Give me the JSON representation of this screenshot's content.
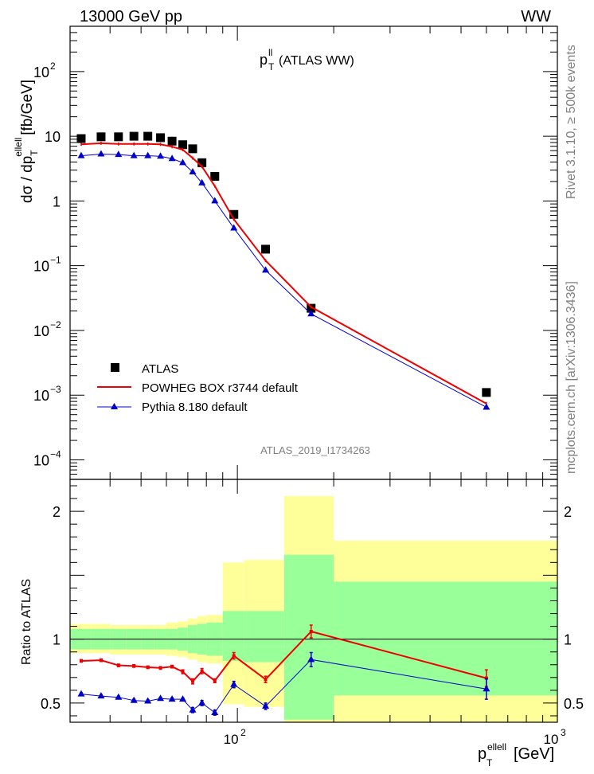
{
  "header": {
    "energy_label": "13000 GeV pp",
    "process_label": "WW",
    "title_main": "p",
    "title_sup": "ll",
    "title_sub": "T",
    "title_rest": " (ATLAS WW)",
    "analysis_id": "ATLAS_2019_I1734263",
    "rivet_label": "Rivet 3.1.10, ≥ 500k events",
    "mcplots_label": "mcplots.cern.ch [arXiv:1306.3436]"
  },
  "chart_data": [
    {
      "type": "scatter",
      "yscale": "log",
      "xscale": "log",
      "title": "pT^ll (ATLAS WW)",
      "ylabel": "dσ / dpT^ellell [fb/GeV]",
      "xlim": [
        30,
        1000
      ],
      "ylim": [
        5e-05,
        500
      ],
      "y_ticks": [
        {
          "v": 100,
          "base": "10",
          "exp": "2"
        },
        {
          "v": 10,
          "base": "10",
          "exp": ""
        },
        {
          "v": 1,
          "base": "1",
          "exp": ""
        },
        {
          "v": 0.1,
          "base": "10",
          "exp": "−1"
        },
        {
          "v": 0.01,
          "base": "10",
          "exp": "−2"
        },
        {
          "v": 0.001,
          "base": "10",
          "exp": "−3"
        },
        {
          "v": 0.0001,
          "base": "10",
          "exp": "−4"
        }
      ],
      "legend_position": "bottom-left",
      "series": [
        {
          "name": "ATLAS",
          "marker": "square",
          "color": "#000000",
          "x": [
            32.5,
            37.5,
            42.5,
            47.5,
            52.5,
            57.5,
            62.5,
            67.5,
            72.5,
            77.5,
            85,
            97.5,
            122.5,
            170,
            600
          ],
          "y": [
            9.2,
            9.8,
            9.8,
            10.0,
            10.0,
            9.5,
            8.4,
            7.4,
            6.4,
            3.9,
            2.4,
            0.62,
            0.18,
            0.022,
            0.0011
          ]
        },
        {
          "name": "POWHEG BOX r3744 default",
          "marker": "line",
          "color": "#ee0000",
          "x": [
            32.5,
            37.5,
            42.5,
            47.5,
            52.5,
            57.5,
            62.5,
            67.5,
            72.5,
            77.5,
            85,
            97.5,
            122.5,
            170,
            600
          ],
          "y": [
            7.5,
            7.8,
            7.6,
            7.6,
            7.6,
            7.5,
            6.9,
            6.2,
            4.6,
            3.4,
            1.7,
            0.52,
            0.12,
            0.023,
            0.00074
          ]
        },
        {
          "name": "Pythia 8.180 default",
          "marker": "triangle",
          "color": "#0000cc",
          "x": [
            32.5,
            37.5,
            42.5,
            47.5,
            52.5,
            57.5,
            62.5,
            67.5,
            72.5,
            77.5,
            85,
            97.5,
            122.5,
            170,
            600
          ],
          "y": [
            5.0,
            5.3,
            5.2,
            5.0,
            5.0,
            4.9,
            4.5,
            3.9,
            2.8,
            1.9,
            1.0,
            0.38,
            0.085,
            0.018,
            0.00065
          ]
        }
      ]
    },
    {
      "type": "line",
      "xscale": "log",
      "ylabel": "Ratio to ATLAS",
      "xlabel": "pT^ellell [GeV]",
      "xlim": [
        30,
        1000
      ],
      "ylim": [
        0.35,
        2.25
      ],
      "y_ticks": [
        "0.5",
        "1",
        "2"
      ],
      "x_ticks": [
        {
          "v": 100,
          "base": "10",
          "exp": "2"
        },
        {
          "v": 1000,
          "base": "10",
          "exp": "3"
        }
      ],
      "bins": [
        30,
        35,
        40,
        45,
        50,
        55,
        60,
        65,
        70,
        75,
        80,
        90,
        105,
        140,
        200,
        1000
      ],
      "band_stat": [
        [
          0.92,
          1.08
        ],
        [
          0.92,
          1.08
        ],
        [
          0.92,
          1.08
        ],
        [
          0.92,
          1.08
        ],
        [
          0.92,
          1.08
        ],
        [
          0.92,
          1.08
        ],
        [
          0.92,
          1.08
        ],
        [
          0.91,
          1.09
        ],
        [
          0.89,
          1.11
        ],
        [
          0.88,
          1.12
        ],
        [
          0.87,
          1.13
        ],
        [
          0.83,
          1.22
        ],
        [
          0.82,
          1.22
        ],
        [
          0.37,
          1.66
        ],
        [
          0.56,
          1.45
        ]
      ],
      "band_total": [
        [
          0.89,
          1.12
        ],
        [
          0.89,
          1.12
        ],
        [
          0.88,
          1.11
        ],
        [
          0.88,
          1.11
        ],
        [
          0.88,
          1.11
        ],
        [
          0.88,
          1.11
        ],
        [
          0.87,
          1.13
        ],
        [
          0.86,
          1.14
        ],
        [
          0.84,
          1.16
        ],
        [
          0.82,
          1.18
        ],
        [
          0.81,
          1.19
        ],
        [
          0.49,
          1.6
        ],
        [
          0.47,
          1.62
        ],
        [
          0.35,
          2.12
        ],
        [
          0.35,
          1.77
        ]
      ],
      "series": [
        {
          "name": "POWHEG BOX r3744 default",
          "color": "#ee0000",
          "x": [
            32.5,
            37.5,
            42.5,
            47.5,
            52.5,
            57.5,
            62.5,
            67.5,
            72.5,
            77.5,
            85,
            97.5,
            122.5,
            170,
            600
          ],
          "y": [
            0.83,
            0.835,
            0.795,
            0.79,
            0.78,
            0.775,
            0.785,
            0.745,
            0.67,
            0.75,
            0.675,
            0.87,
            0.685,
            1.06,
            0.695
          ],
          "err": [
            0.01,
            0.01,
            0.01,
            0.01,
            0.01,
            0.01,
            0.01,
            0.015,
            0.02,
            0.02,
            0.015,
            0.025,
            0.025,
            0.05,
            0.065
          ]
        },
        {
          "name": "Pythia 8.180 default",
          "color": "#0000cc",
          "x": [
            32.5,
            37.5,
            42.5,
            47.5,
            52.5,
            57.5,
            62.5,
            67.5,
            72.5,
            77.5,
            85,
            97.5,
            122.5,
            170,
            600
          ],
          "y": [
            0.57,
            0.555,
            0.545,
            0.52,
            0.515,
            0.535,
            0.53,
            0.53,
            0.445,
            0.5,
            0.425,
            0.645,
            0.475,
            0.84,
            0.61
          ],
          "err": [
            0.01,
            0.01,
            0.01,
            0.01,
            0.01,
            0.01,
            0.01,
            0.01,
            0.02,
            0.02,
            0.02,
            0.025,
            0.025,
            0.055,
            0.08
          ]
        }
      ],
      "reference_line": 1
    }
  ],
  "colors": {
    "band_stat": "#99ff99",
    "band_total": "#ffff99"
  }
}
